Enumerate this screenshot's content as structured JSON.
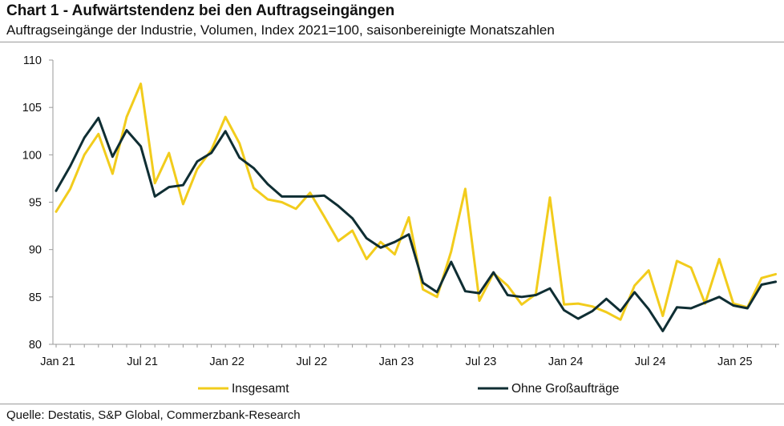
{
  "header": {
    "title": "Chart 1 - Aufwärtstendenz bei den Auftragseingängen",
    "subtitle": "Auftragseingänge der Industrie, Volumen, Index 2021=100, saisonbereinigte Monatszahlen"
  },
  "footer": {
    "source": "Quelle: Destatis, S&P Global, Commerzbank-Research"
  },
  "chart_data": {
    "type": "line",
    "title": "Chart 1 - Aufwärtstendenz bei den Auftragseingängen",
    "subtitle": "Auftragseingänge der Industrie, Volumen, Index 2021=100, saisonbereinigte Monatszahlen",
    "xlabel": "",
    "ylabel": "",
    "ylim": [
      80,
      110
    ],
    "yticks": [
      80,
      85,
      90,
      95,
      100,
      105,
      110
    ],
    "x_tick_labels": [
      "Jan 21",
      "Jul 21",
      "Jan 22",
      "Jul 22",
      "Jan 23",
      "Jul 23",
      "Jan 24",
      "Jul 24",
      "Jan 25"
    ],
    "x": [
      "2021-01",
      "2021-02",
      "2021-03",
      "2021-04",
      "2021-05",
      "2021-06",
      "2021-07",
      "2021-08",
      "2021-09",
      "2021-10",
      "2021-11",
      "2021-12",
      "2022-01",
      "2022-02",
      "2022-03",
      "2022-04",
      "2022-05",
      "2022-06",
      "2022-07",
      "2022-08",
      "2022-09",
      "2022-10",
      "2022-11",
      "2022-12",
      "2023-01",
      "2023-02",
      "2023-03",
      "2023-04",
      "2023-05",
      "2023-06",
      "2023-07",
      "2023-08",
      "2023-09",
      "2023-10",
      "2023-11",
      "2023-12",
      "2024-01",
      "2024-02",
      "2024-03",
      "2024-04",
      "2024-05",
      "2024-06",
      "2024-07",
      "2024-08",
      "2024-09",
      "2024-10",
      "2024-11",
      "2024-12",
      "2025-01",
      "2025-02",
      "2025-03",
      "2025-04"
    ],
    "grid": false,
    "legend": "bottom",
    "series": [
      {
        "name": "Insgesamt",
        "color": "#f2cc1c",
        "values": [
          94.0,
          96.4,
          100.0,
          102.2,
          98.0,
          104.0,
          107.5,
          97.0,
          100.2,
          94.8,
          98.5,
          100.5,
          104.0,
          101.2,
          96.5,
          95.3,
          95.0,
          94.3,
          96.0,
          93.5,
          90.9,
          92.0,
          89.0,
          90.8,
          89.5,
          93.4,
          85.8,
          85.0,
          89.8,
          96.4,
          84.6,
          87.5,
          86.2,
          84.2,
          85.3,
          95.5,
          84.2,
          84.3,
          84.0,
          83.4,
          82.6,
          86.2,
          87.8,
          83.0,
          88.8,
          88.1,
          84.3,
          89.0,
          84.3,
          83.9,
          87.0,
          87.4
        ]
      },
      {
        "name": "Ohne Großaufträge",
        "color": "#0f2e33",
        "values": [
          96.2,
          98.8,
          101.8,
          103.9,
          99.8,
          102.6,
          100.9,
          95.6,
          96.6,
          96.8,
          99.3,
          100.2,
          102.5,
          99.7,
          98.6,
          96.9,
          95.6,
          95.6,
          95.6,
          95.7,
          94.6,
          93.3,
          91.2,
          90.2,
          90.8,
          91.6,
          86.5,
          85.5,
          88.7,
          85.6,
          85.4,
          87.6,
          85.2,
          85.0,
          85.2,
          85.9,
          83.6,
          82.7,
          83.5,
          84.8,
          83.5,
          85.5,
          83.7,
          81.4,
          83.9,
          83.8,
          84.4,
          85.0,
          84.1,
          83.8,
          86.3,
          86.6
        ]
      }
    ]
  }
}
